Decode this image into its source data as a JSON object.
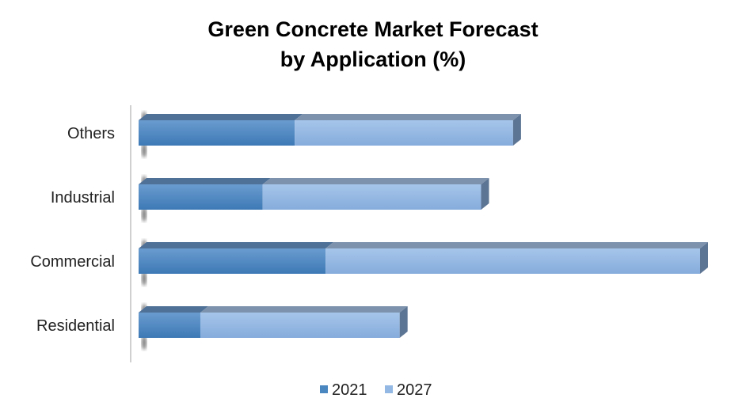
{
  "chart_data": {
    "type": "bar",
    "orientation": "horizontal",
    "stacked": true,
    "style": "3d",
    "title_lines": [
      "Green Concrete Market Forecast",
      "by Application (%)"
    ],
    "categories": [
      "Residential",
      "Commercial",
      "Industrial",
      "Others"
    ],
    "series": [
      {
        "name": "2021",
        "values": [
          11.0,
          33.3,
          22.1,
          27.8
        ],
        "color": "#4a86c0"
      },
      {
        "name": "2027",
        "values": [
          35.5,
          66.7,
          38.9,
          38.9
        ],
        "color": "#93b8e3"
      }
    ],
    "xlim": [
      0,
      100
    ],
    "x_axis_visible": false,
    "grid": false,
    "legend": "bottom"
  }
}
